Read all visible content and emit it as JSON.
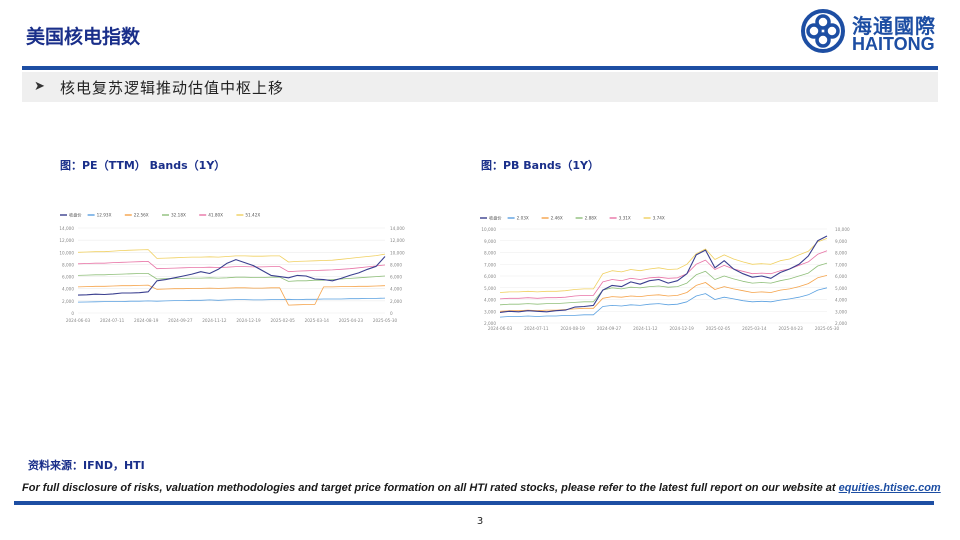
{
  "header": {
    "title": "美国核电指数",
    "logo_cn": "海通國際",
    "logo_en": "HAITONG",
    "subtitle": "核电复苏逻辑推动估值中枢上移",
    "brand_color": "#1d4ea3"
  },
  "captions": {
    "pe": "图：PE（TTM） Bands（1Y）",
    "pb": "图：PB Bands（1Y）"
  },
  "footer": {
    "source": "资料来源：IFND，HTI",
    "disclaimer": "For full disclosure of risks, valuation methodologies and target price formation on all HTI rated stocks, please refer to the latest full report on our website at",
    "link_text": "equities.htisec.com",
    "page_number": "3"
  },
  "chart_data": [
    {
      "id": "pe",
      "type": "line",
      "xlabels": [
        "2024-06-03",
        "2024-07-11",
        "2024-08-19",
        "2024-09-27",
        "2024-11-12",
        "2024-12-19",
        "2025-02-05",
        "2025-03-14",
        "2025-04-23",
        "2025-05-30"
      ],
      "yticks": [
        "0",
        "2,000",
        "4,000",
        "6,000",
        "8,000",
        "10,000",
        "12,000",
        "14,000"
      ],
      "ylim": [
        0,
        14000
      ],
      "legend": [
        "收盘价",
        "12.93X",
        "22.56X",
        "32.18X",
        "41.80X",
        "51.42X"
      ],
      "colors": [
        "#3a3f8f",
        "#5aa0e0",
        "#f5a34a",
        "#8fbf7a",
        "#e874a6",
        "#f0d060"
      ],
      "series": [
        {
          "name": "收盘价",
          "values": [
            2950,
            3000,
            3100,
            3050,
            3150,
            3300,
            3300,
            3350,
            3500,
            5300,
            5500,
            5800,
            6100,
            6400,
            6800,
            6500,
            7200,
            8200,
            8800,
            8300,
            7800,
            7000,
            6200,
            6000,
            5800,
            6200,
            6100,
            5600,
            5500,
            5300,
            5700,
            6200,
            6600,
            7200,
            7700,
            9300
          ]
        },
        {
          "name": "12.93X",
          "values": [
            1800,
            1820,
            1850,
            1870,
            1900,
            1900,
            1950,
            1950,
            2000,
            1950,
            2000,
            2050,
            2050,
            2100,
            2100,
            2150,
            2100,
            2150,
            2200,
            2200,
            2150,
            2150,
            2200,
            2200,
            2250,
            2200,
            2250,
            2250,
            2300,
            2300,
            2300,
            2350,
            2350,
            2400,
            2400,
            2450
          ]
        },
        {
          "name": "22.56X",
          "values": [
            4300,
            4350,
            4400,
            4400,
            4450,
            4500,
            4500,
            4550,
            4600,
            3900,
            3950,
            4000,
            4000,
            4050,
            4050,
            4100,
            4050,
            4100,
            4150,
            4150,
            4100,
            4100,
            4150,
            4150,
            1300,
            1350,
            1400,
            1400,
            4300,
            4300,
            4350,
            4350,
            4400,
            4400,
            4450,
            4500
          ]
        },
        {
          "name": "32.18X",
          "values": [
            6200,
            6250,
            6300,
            6300,
            6350,
            6400,
            6450,
            6500,
            6500,
            5600,
            5650,
            5700,
            5700,
            5750,
            5750,
            5800,
            5750,
            5800,
            5900,
            5900,
            5850,
            5850,
            5900,
            5900,
            5200,
            5300,
            5300,
            5400,
            5400,
            5500,
            5600,
            5700,
            5800,
            5900,
            6000,
            6100
          ]
        },
        {
          "name": "41.80X",
          "values": [
            8100,
            8150,
            8200,
            8200,
            8300,
            8350,
            8400,
            8450,
            8500,
            7300,
            7350,
            7400,
            7450,
            7500,
            7500,
            7550,
            7500,
            7550,
            7650,
            7650,
            7600,
            7600,
            7650,
            7650,
            6800,
            6900,
            6950,
            7000,
            7050,
            7100,
            7200,
            7300,
            7450,
            7600,
            7750,
            7900
          ]
        },
        {
          "name": "51.42X",
          "values": [
            10000,
            10050,
            10100,
            10100,
            10200,
            10300,
            10350,
            10400,
            10450,
            9000,
            9050,
            9100,
            9150,
            9200,
            9200,
            9250,
            9200,
            9300,
            9400,
            9400,
            9350,
            9350,
            9400,
            9400,
            8400,
            8500,
            8550,
            8600,
            8650,
            8700,
            8850,
            9000,
            9150,
            9300,
            9450,
            9700
          ]
        }
      ]
    },
    {
      "id": "pb",
      "type": "line",
      "xlabels": [
        "2024-06-03",
        "2024-07-11",
        "2024-08-19",
        "2024-09-27",
        "2024-11-12",
        "2024-12-19",
        "2025-02-05",
        "2025-03-14",
        "2025-04-23",
        "2025-05-30"
      ],
      "yticks": [
        "2,000",
        "3,000",
        "4,000",
        "5,000",
        "6,000",
        "7,000",
        "8,000",
        "9,000",
        "10,000"
      ],
      "ylim": [
        2000,
        10000
      ],
      "legend": [
        "收盘价",
        "2.03X",
        "2.46X",
        "2.88X",
        "3.31X",
        "3.74X"
      ],
      "colors": [
        "#3a3f8f",
        "#5aa0e0",
        "#f5a34a",
        "#8fbf7a",
        "#e874a6",
        "#f0d060"
      ],
      "series": [
        {
          "name": "收盘价",
          "values": [
            2900,
            3000,
            2950,
            3050,
            3000,
            2950,
            3050,
            3100,
            3350,
            3400,
            3500,
            4800,
            5200,
            5100,
            5500,
            5300,
            5600,
            5700,
            5400,
            5600,
            6200,
            7800,
            8200,
            6700,
            7300,
            6600,
            6200,
            5900,
            6000,
            5800,
            6300,
            6600,
            7000,
            7700,
            9000,
            9400
          ]
        },
        {
          "name": "2.03X",
          "values": [
            2500,
            2550,
            2550,
            2600,
            2550,
            2600,
            2600,
            2650,
            2650,
            2700,
            2700,
            3400,
            3500,
            3450,
            3550,
            3500,
            3600,
            3650,
            3550,
            3600,
            3800,
            4300,
            4500,
            4000,
            4200,
            4050,
            3900,
            3800,
            3850,
            3800,
            3950,
            4050,
            4200,
            4400,
            4800,
            5000
          ]
        },
        {
          "name": "2.46X",
          "values": [
            3000,
            3050,
            3050,
            3100,
            3050,
            3100,
            3100,
            3150,
            3200,
            3250,
            3250,
            4100,
            4250,
            4200,
            4300,
            4250,
            4350,
            4400,
            4300,
            4350,
            4600,
            5200,
            5450,
            4850,
            5100,
            4900,
            4750,
            4600,
            4650,
            4600,
            4800,
            4900,
            5100,
            5350,
            5850,
            6050
          ]
        },
        {
          "name": "2.88X",
          "values": [
            3550,
            3600,
            3600,
            3650,
            3600,
            3650,
            3650,
            3700,
            3750,
            3800,
            3800,
            4800,
            5000,
            4900,
            5050,
            5000,
            5100,
            5150,
            5050,
            5100,
            5400,
            6100,
            6400,
            5700,
            6000,
            5750,
            5550,
            5400,
            5450,
            5400,
            5600,
            5750,
            6000,
            6250,
            6850,
            7100
          ]
        },
        {
          "name": "3.31X",
          "values": [
            4050,
            4100,
            4100,
            4150,
            4100,
            4150,
            4150,
            4200,
            4300,
            4350,
            4350,
            5500,
            5700,
            5600,
            5800,
            5700,
            5850,
            5900,
            5800,
            5850,
            6200,
            7000,
            7350,
            6550,
            6900,
            6600,
            6400,
            6200,
            6250,
            6200,
            6450,
            6600,
            6900,
            7200,
            7850,
            8150
          ]
        },
        {
          "name": "3.74X",
          "values": [
            4600,
            4650,
            4650,
            4700,
            4650,
            4700,
            4700,
            4750,
            4850,
            4900,
            4900,
            6200,
            6450,
            6350,
            6550,
            6450,
            6600,
            6700,
            6550,
            6600,
            7000,
            7900,
            8300,
            7400,
            7800,
            7450,
            7200,
            7000,
            7050,
            7000,
            7300,
            7450,
            7800,
            8100,
            8900,
            9200
          ]
        }
      ]
    }
  ]
}
